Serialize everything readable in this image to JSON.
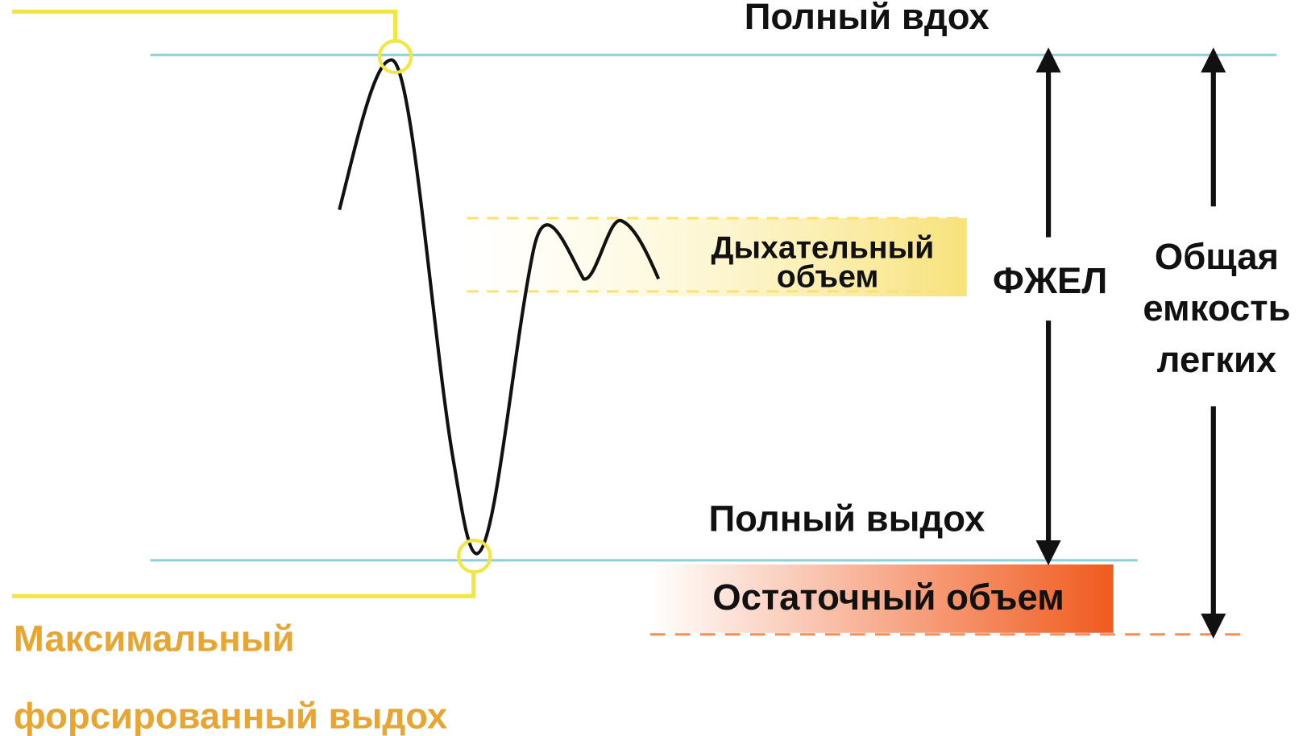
{
  "labels": {
    "full_inhale": "Полный вдох",
    "tidal_volume": [
      "Дыхательный",
      "объем"
    ],
    "fvc": "ФЖЕЛ",
    "total_lung_capacity": [
      "Общая",
      "емкость",
      "легких"
    ],
    "full_exhale": "Полный выдох",
    "residual_volume": "Остаточный объем",
    "max_forced_exhale": [
      "Максимальный",
      "форсированный выдох"
    ]
  }
}
